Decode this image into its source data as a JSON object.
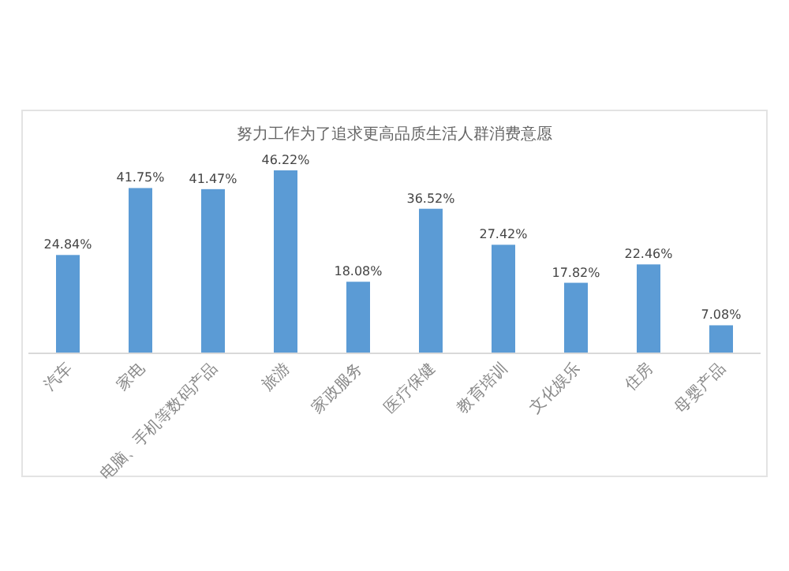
{
  "chart_data": {
    "type": "bar",
    "title": "努力工作为了追求更高品质生活人群消费意愿",
    "categories": [
      "汽车",
      "家电",
      "电脑、手机等数码产品",
      "旅游",
      "家政服务",
      "医疗保健",
      "教育培训",
      "文化娱乐",
      "住房",
      "母婴产品"
    ],
    "values": [
      24.84,
      41.75,
      41.47,
      46.22,
      18.08,
      36.52,
      27.42,
      17.82,
      22.46,
      7.08
    ],
    "value_labels": [
      "24.84%",
      "41.75%",
      "41.47%",
      "46.22%",
      "18.08%",
      "36.52%",
      "27.42%",
      "17.82%",
      "22.46%",
      "7.08%"
    ],
    "color": "#5b9bd5"
  }
}
